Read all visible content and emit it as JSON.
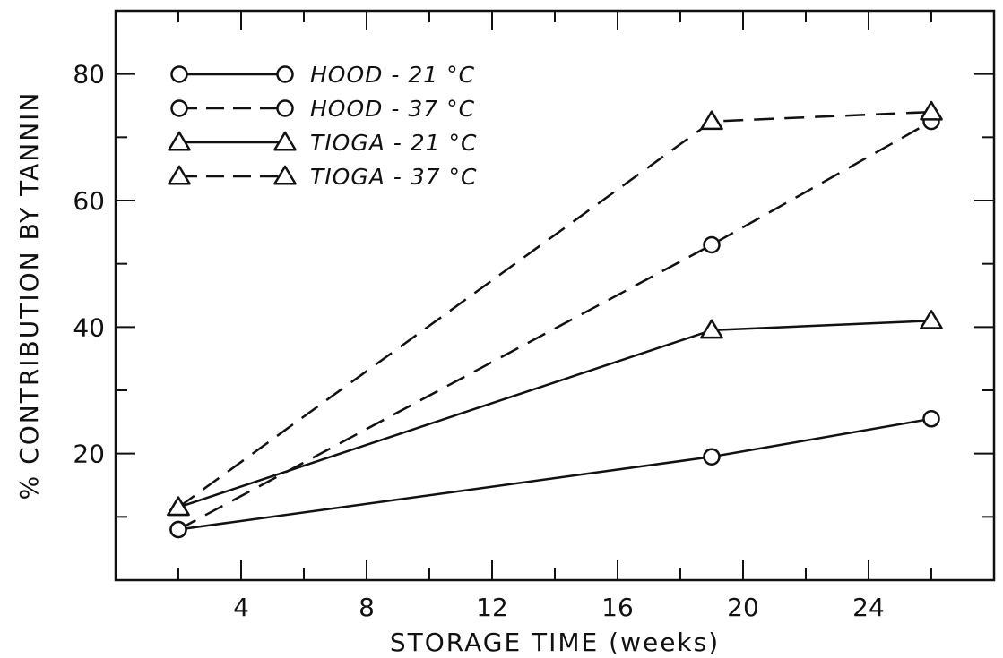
{
  "chart_data": {
    "type": "line",
    "title": "",
    "xlabel": "STORAGE TIME (weeks)",
    "ylabel": "% CONTRIBUTION BY TANNIN",
    "xlim": [
      0,
      28
    ],
    "ylim": [
      0,
      90
    ],
    "x_major_ticks": [
      4,
      8,
      12,
      16,
      20,
      24
    ],
    "x_minor_ticks": [
      2,
      6,
      10,
      14,
      18,
      22,
      26
    ],
    "y_major_ticks": [
      20,
      40,
      60,
      80
    ],
    "y_minor_ticks": [
      10,
      30,
      50,
      70
    ],
    "grid": false,
    "legend_position": "top-left",
    "series": [
      {
        "name": "HOOD - 21 °C",
        "marker": "circle",
        "line_style": "solid",
        "x": [
          2,
          19,
          26
        ],
        "y": [
          8,
          19.5,
          25.5
        ]
      },
      {
        "name": "HOOD - 37 °C",
        "marker": "circle",
        "line_style": "dashed",
        "x": [
          2,
          19,
          26
        ],
        "y": [
          8,
          53,
          72.5
        ]
      },
      {
        "name": "TIOGA - 21 °C",
        "marker": "triangle",
        "line_style": "solid",
        "x": [
          2,
          19,
          26
        ],
        "y": [
          11.5,
          39.5,
          41
        ]
      },
      {
        "name": "TIOGA - 37 °C",
        "marker": "triangle",
        "line_style": "dashed",
        "x": [
          2,
          19,
          26
        ],
        "y": [
          11.5,
          72.5,
          74
        ]
      }
    ]
  }
}
